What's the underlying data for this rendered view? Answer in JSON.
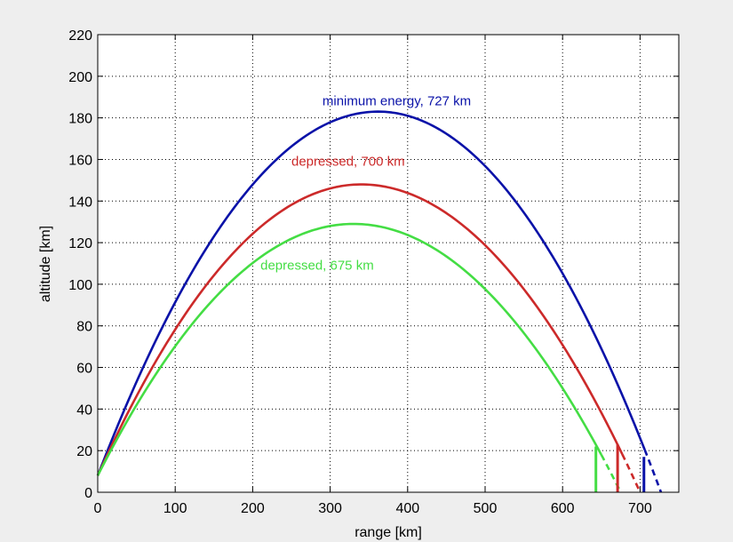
{
  "chart_data": {
    "type": "line",
    "title": "",
    "xlabel": "range [km]",
    "ylabel": "altitude [km]",
    "xlim": [
      0,
      750
    ],
    "ylim": [
      0,
      220
    ],
    "xticks": [
      0,
      100,
      200,
      300,
      400,
      500,
      600,
      700
    ],
    "yticks": [
      0,
      20,
      40,
      60,
      80,
      100,
      120,
      140,
      160,
      180,
      200,
      220
    ],
    "grid": true,
    "series": [
      {
        "name": "minimum energy, 727 km",
        "color": "#0a12a8",
        "apex_x": 362,
        "apex_y": 183,
        "burnout_x": 0,
        "burnout_y": 8,
        "solid_end_x": 706,
        "solid_end_y": 18,
        "impact_x": 727,
        "impact_y": 0
      },
      {
        "name": "depressed, 700 km",
        "color": "#cc2a2a",
        "apex_x": 340,
        "apex_y": 148,
        "burnout_x": 0,
        "burnout_y": 8,
        "solid_end_x": 677,
        "solid_end_y": 20,
        "impact_x": 700,
        "impact_y": 0
      },
      {
        "name": "depressed, 675 km",
        "color": "#44dd44",
        "apex_x": 330,
        "apex_y": 129,
        "burnout_x": 0,
        "burnout_y": 8,
        "solid_end_x": 650,
        "solid_end_y": 20,
        "impact_x": 675,
        "impact_y": 0
      }
    ],
    "annotations": [
      {
        "text": "minimum energy, 727 km",
        "x": 290,
        "y": 186,
        "color": "#0a12a8"
      },
      {
        "text": "depressed, 700 km",
        "x": 250,
        "y": 157,
        "color": "#cc2a2a"
      },
      {
        "text": "depressed, 675 km",
        "x": 210,
        "y": 107,
        "color": "#44dd44"
      }
    ],
    "verticals": [
      {
        "x": 643,
        "y0": 0,
        "y1": 22,
        "color": "#44dd44"
      },
      {
        "x": 671,
        "y0": 0,
        "y1": 23,
        "color": "#cc2a2a"
      },
      {
        "x": 705,
        "y0": 0,
        "y1": 17,
        "color": "#0a12a8"
      }
    ]
  }
}
